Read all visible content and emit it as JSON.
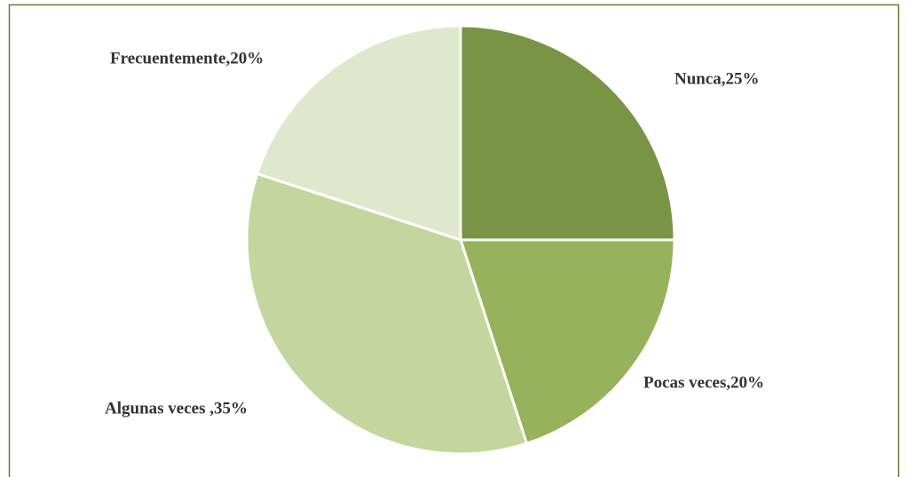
{
  "chart_data": {
    "type": "pie",
    "values": [
      25,
      20,
      35,
      20
    ],
    "value_labels": [
      "Nunca,25%",
      "Pocas veces,20%",
      "Algunas veces ,35%",
      "Frecuentemente,20%"
    ],
    "colors": [
      "#7a9446",
      "#96b25a",
      "#c4d69d",
      "#dfe8cc"
    ]
  }
}
